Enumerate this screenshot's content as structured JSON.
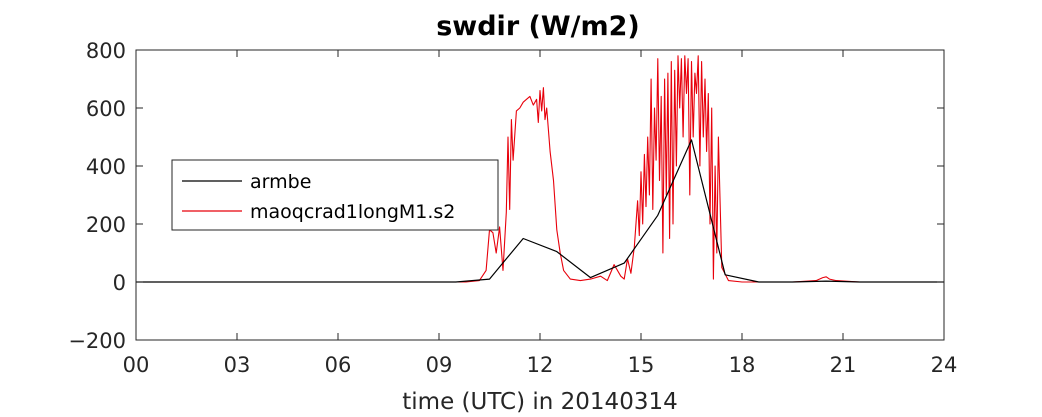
{
  "chart_data": {
    "type": "line",
    "title": "swdir  (W/m2)",
    "xlabel": "time (UTC) in 20140314",
    "ylabel": "",
    "xlim": [
      0,
      24
    ],
    "ylim": [
      -200,
      800
    ],
    "x_ticks": [
      0,
      3,
      6,
      9,
      12,
      15,
      18,
      21,
      24
    ],
    "x_tick_labels": [
      "00",
      "03",
      "06",
      "09",
      "12",
      "15",
      "18",
      "21",
      "24"
    ],
    "y_ticks": [
      -200,
      0,
      200,
      400,
      600,
      800
    ],
    "y_tick_labels": [
      "−200",
      "0",
      "200",
      "400",
      "600",
      "800"
    ],
    "grid": false,
    "legend_position": "left-center",
    "series": [
      {
        "name": "armbe",
        "color": "#000000",
        "x": [
          0,
          0.5,
          1.5,
          2.5,
          3.5,
          4.5,
          5.5,
          6.5,
          7.5,
          8.5,
          9.5,
          10.5,
          11.5,
          12.5,
          13.5,
          14.5,
          15.5,
          16.5,
          17.5,
          18.5,
          19.5,
          20.5,
          21.5,
          22.5,
          23.5,
          24
        ],
        "y": [
          0,
          0,
          0,
          0,
          0,
          0,
          0,
          0,
          0,
          0,
          0,
          10,
          150,
          105,
          15,
          65,
          230,
          490,
          25,
          0,
          0,
          3,
          0,
          0,
          0,
          0
        ]
      },
      {
        "name": "maoqcrad1longM1.s2",
        "color": "#e8000b",
        "x": [
          0,
          9.8,
          10.2,
          10.4,
          10.5,
          10.6,
          10.7,
          10.8,
          10.9,
          11.0,
          11.05,
          11.1,
          11.15,
          11.2,
          11.3,
          11.4,
          11.5,
          11.6,
          11.7,
          11.8,
          11.9,
          11.95,
          12.0,
          12.05,
          12.1,
          12.15,
          12.2,
          12.3,
          12.4,
          12.5,
          12.6,
          12.7,
          12.9,
          13.2,
          13.5,
          13.8,
          14.0,
          14.2,
          14.4,
          14.5,
          14.6,
          14.7,
          14.8,
          14.9,
          14.95,
          15.0,
          15.05,
          15.1,
          15.15,
          15.2,
          15.25,
          15.3,
          15.35,
          15.4,
          15.45,
          15.5,
          15.55,
          15.6,
          15.65,
          15.7,
          15.75,
          15.8,
          15.85,
          15.9,
          15.95,
          16.0,
          16.05,
          16.1,
          16.15,
          16.2,
          16.25,
          16.3,
          16.35,
          16.4,
          16.45,
          16.5,
          16.55,
          16.6,
          16.65,
          16.7,
          16.75,
          16.8,
          16.85,
          16.9,
          16.95,
          17.0,
          17.05,
          17.1,
          17.15,
          17.2,
          17.25,
          17.3,
          17.4,
          17.6,
          18.0,
          18.5,
          19.5,
          20.2,
          20.4,
          20.5,
          20.6,
          20.8,
          21.5,
          22.5,
          24
        ],
        "y": [
          0,
          0,
          5,
          40,
          180,
          170,
          100,
          190,
          40,
          240,
          500,
          250,
          560,
          420,
          590,
          600,
          620,
          630,
          640,
          610,
          630,
          550,
          660,
          590,
          670,
          560,
          600,
          450,
          350,
          180,
          100,
          40,
          10,
          5,
          10,
          20,
          5,
          60,
          20,
          10,
          80,
          30,
          120,
          280,
          160,
          380,
          200,
          440,
          260,
          500,
          300,
          700,
          250,
          600,
          420,
          770,
          350,
          640,
          100,
          700,
          300,
          720,
          150,
          760,
          200,
          730,
          400,
          780,
          600,
          770,
          500,
          780,
          650,
          770,
          300,
          760,
          500,
          720,
          650,
          780,
          400,
          760,
          500,
          700,
          450,
          650,
          200,
          600,
          10,
          400,
          100,
          500,
          50,
          5,
          0,
          0,
          0,
          5,
          15,
          18,
          10,
          5,
          0,
          0,
          0
        ]
      }
    ]
  }
}
